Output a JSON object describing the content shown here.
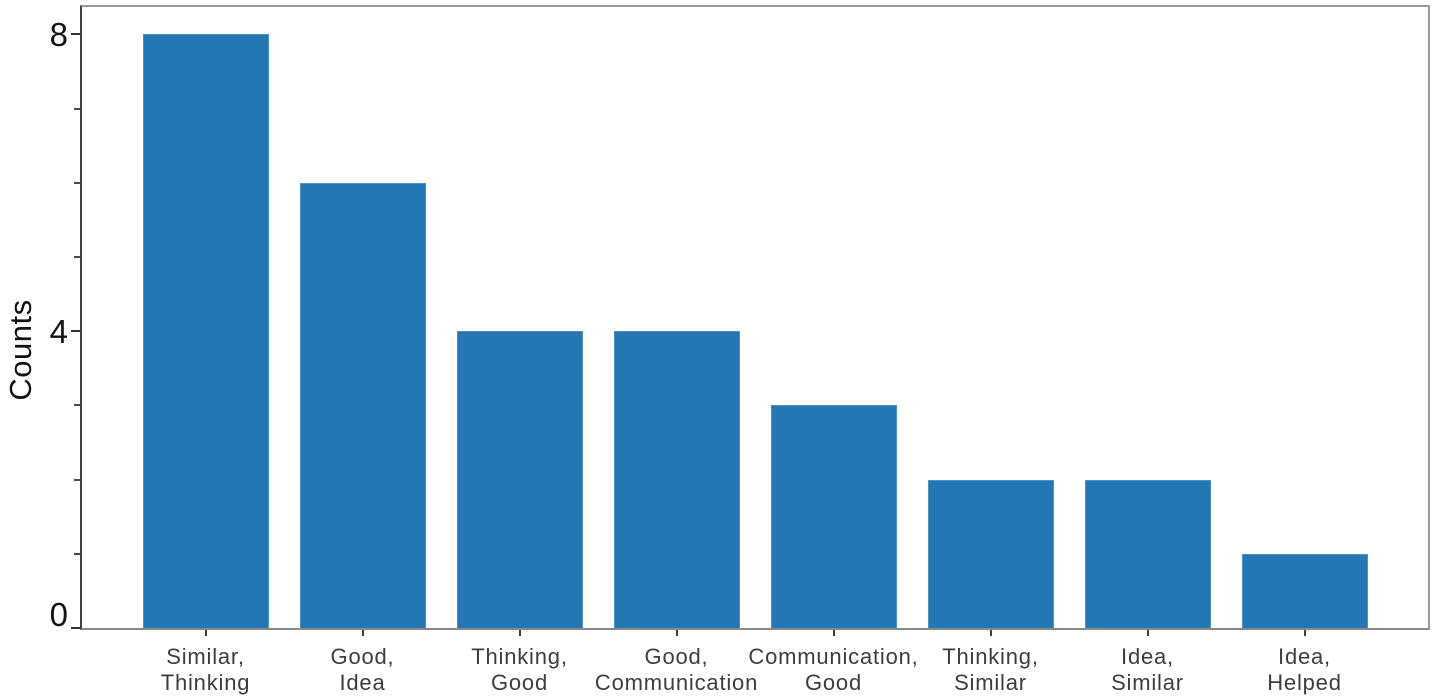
{
  "chart_data": {
    "type": "bar",
    "title": "",
    "xlabel": "",
    "ylabel": "Counts",
    "categories": [
      "Similar,\nThinking",
      "Good,\nIdea",
      "Thinking,\nGood",
      "Good,\nCommunication",
      "Communication,\nGood",
      "Thinking,\nSimilar",
      "Idea,\nSimilar",
      "Idea,\nHelped"
    ],
    "values": [
      8,
      6,
      4,
      4,
      3,
      2,
      2,
      1
    ],
    "ylim": [
      0,
      8.37
    ],
    "yticks_major": [
      0,
      4,
      8
    ],
    "ytick_labels": [
      "0",
      "4",
      "8"
    ],
    "yticks_minor": [
      1,
      2,
      3,
      5,
      6,
      7
    ],
    "grid": false,
    "legend": null,
    "bar_color": "#2277b4",
    "bar_edge_color": "#4d92c6",
    "axis_text_color": "#141414",
    "category_text_color": "#3d3d3d"
  }
}
